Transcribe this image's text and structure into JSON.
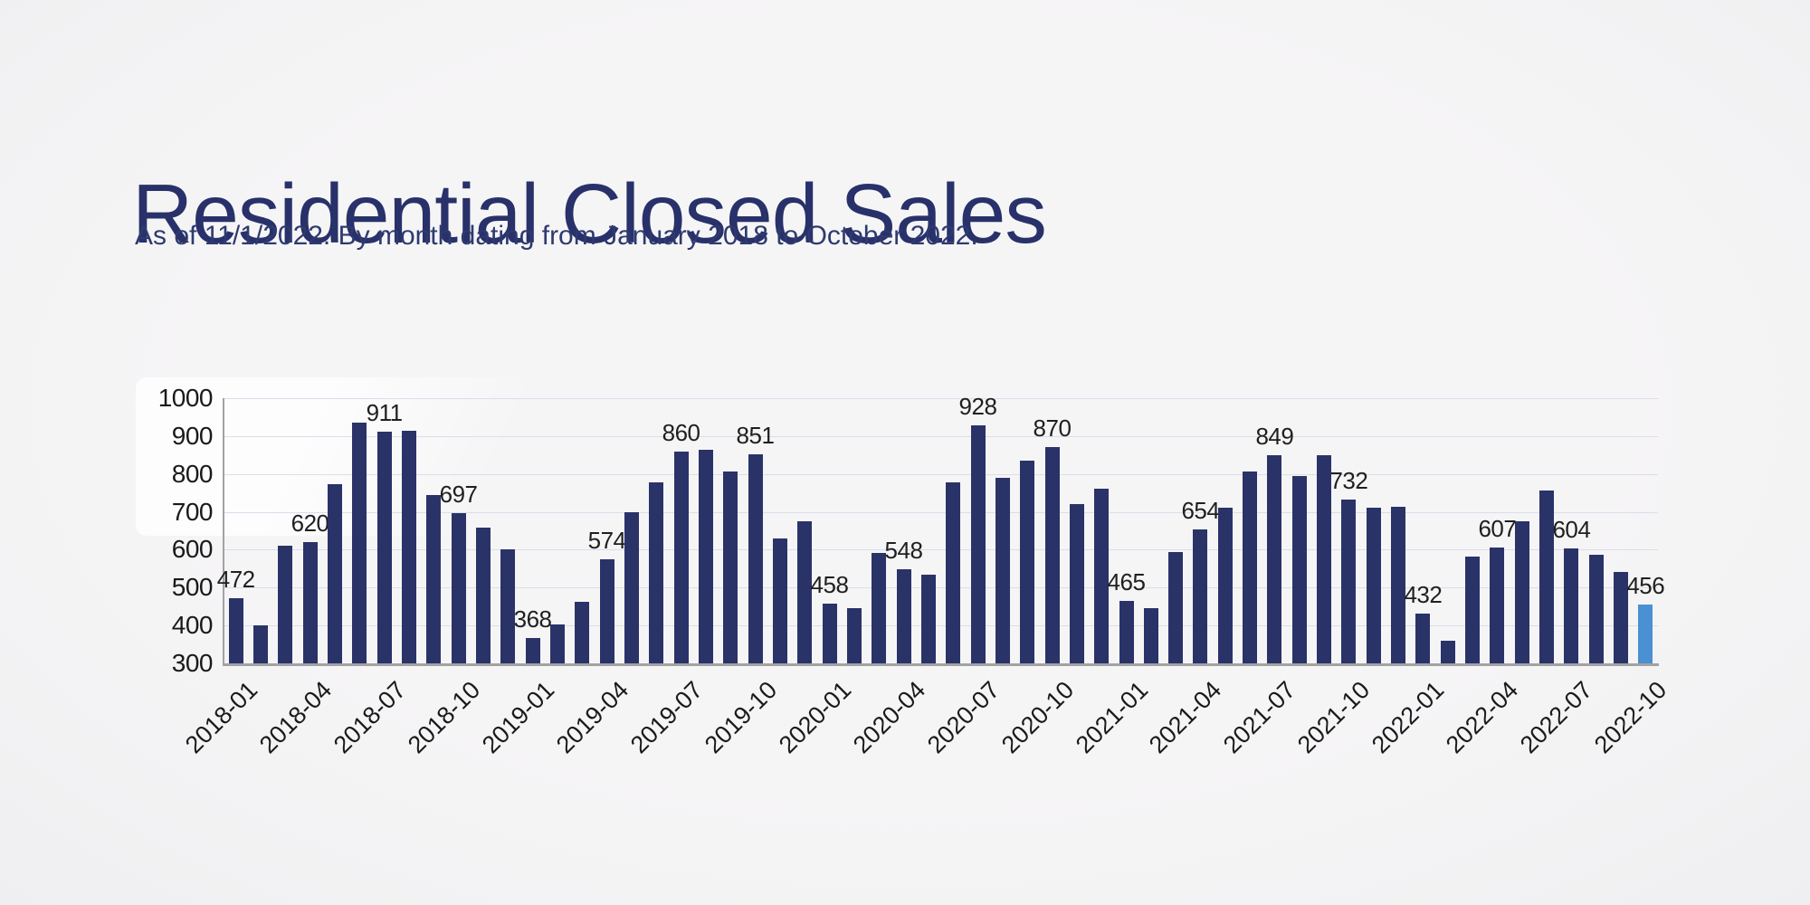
{
  "header": {
    "title": "Residential Closed Sales",
    "subtitle": "As of 11/1/2022. By month dating from January 2018 to October 2022."
  },
  "colors": {
    "background": "#f4f4f5",
    "title_text": "#283169",
    "subtitle_text": "#2e3a70",
    "bar": "#2a3368",
    "bar_highlight": "#4a90d2",
    "gridline": "#d9deeb",
    "axis_line": "#a2a2a4",
    "tick_text": "#1a1a1a",
    "value_label_text": "#1f1f1f"
  },
  "chart_data": {
    "type": "bar",
    "title": "Residential Closed Sales",
    "xlabel": "",
    "ylabel": "",
    "ylim": [
      300,
      1000
    ],
    "yticks": [
      300,
      400,
      500,
      600,
      700,
      800,
      900,
      1000
    ],
    "grid": "horizontal",
    "xtick_every": 3,
    "data_label_every": 3,
    "highlight_index": 57,
    "x": [
      "2018-01",
      "2018-02",
      "2018-03",
      "2018-04",
      "2018-05",
      "2018-06",
      "2018-07",
      "2018-08",
      "2018-09",
      "2018-10",
      "2018-11",
      "2018-12",
      "2019-01",
      "2019-02",
      "2019-03",
      "2019-04",
      "2019-05",
      "2019-06",
      "2019-07",
      "2019-08",
      "2019-09",
      "2019-10",
      "2019-11",
      "2019-12",
      "2020-01",
      "2020-02",
      "2020-03",
      "2020-04",
      "2020-05",
      "2020-06",
      "2020-07",
      "2020-08",
      "2020-09",
      "2020-10",
      "2020-11",
      "2020-12",
      "2021-01",
      "2021-02",
      "2021-03",
      "2021-04",
      "2021-05",
      "2021-06",
      "2021-07",
      "2021-08",
      "2021-09",
      "2021-10",
      "2021-11",
      "2021-12",
      "2022-01",
      "2022-02",
      "2022-03",
      "2022-04",
      "2022-05",
      "2022-06",
      "2022-07",
      "2022-08",
      "2022-09",
      "2022-10"
    ],
    "values": [
      472,
      400,
      610,
      620,
      774,
      935,
      911,
      913,
      745,
      697,
      659,
      601,
      368,
      403,
      462,
      574,
      699,
      778,
      860,
      865,
      806,
      851,
      630,
      676,
      458,
      446,
      592,
      548,
      534,
      779,
      928,
      791,
      835,
      870,
      720,
      761,
      465,
      447,
      594,
      654,
      712,
      806,
      849,
      794,
      850,
      732,
      712,
      713,
      432,
      360,
      582,
      607,
      676,
      757,
      604,
      588,
      542,
      456
    ],
    "visible_data_labels": [
      472,
      620,
      911,
      697,
      368,
      574,
      860,
      851,
      458,
      548,
      928,
      870,
      465,
      654,
      849,
      732,
      432,
      607,
      604,
      456
    ],
    "visible_xtick_labels": [
      "2018-01",
      "2018-04",
      "2018-07",
      "2018-10",
      "2019-01",
      "2019-04",
      "2019-07",
      "2019-10",
      "2020-01",
      "2020-04",
      "2020-07",
      "2020-10",
      "2021-01",
      "2021-04",
      "2021-07",
      "2021-10",
      "2022-01",
      "2022-04",
      "2022-07",
      "2022-10"
    ]
  }
}
